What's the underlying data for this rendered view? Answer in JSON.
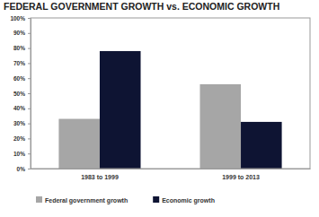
{
  "chart_data": {
    "type": "bar",
    "title": "FEDERAL GOVERNMENT GROWTH vs. ECONOMIC GROWTH",
    "categories": [
      "1983 to 1999",
      "1999 to 2013"
    ],
    "series": [
      {
        "name": "Federal government growth",
        "color": "#a6a6a6",
        "values": [
          33,
          56
        ]
      },
      {
        "name": "Economic growth",
        "color": "#0e1433",
        "values": [
          78,
          31
        ]
      }
    ],
    "ylim": [
      0,
      100
    ],
    "yticks": [
      {
        "value": 0,
        "label": "0%"
      },
      {
        "value": 10,
        "label": "10%"
      },
      {
        "value": 20,
        "label": "20%"
      },
      {
        "value": 30,
        "label": "30%"
      },
      {
        "value": 40,
        "label": "40%"
      },
      {
        "value": 50,
        "label": "50%"
      },
      {
        "value": 60,
        "label": "60%"
      },
      {
        "value": 70,
        "label": "70%"
      },
      {
        "value": 80,
        "label": "80%"
      },
      {
        "value": 90,
        "label": "90%"
      },
      {
        "value": 100,
        "label": "100%"
      }
    ],
    "grid": false,
    "legend": "bottom"
  }
}
